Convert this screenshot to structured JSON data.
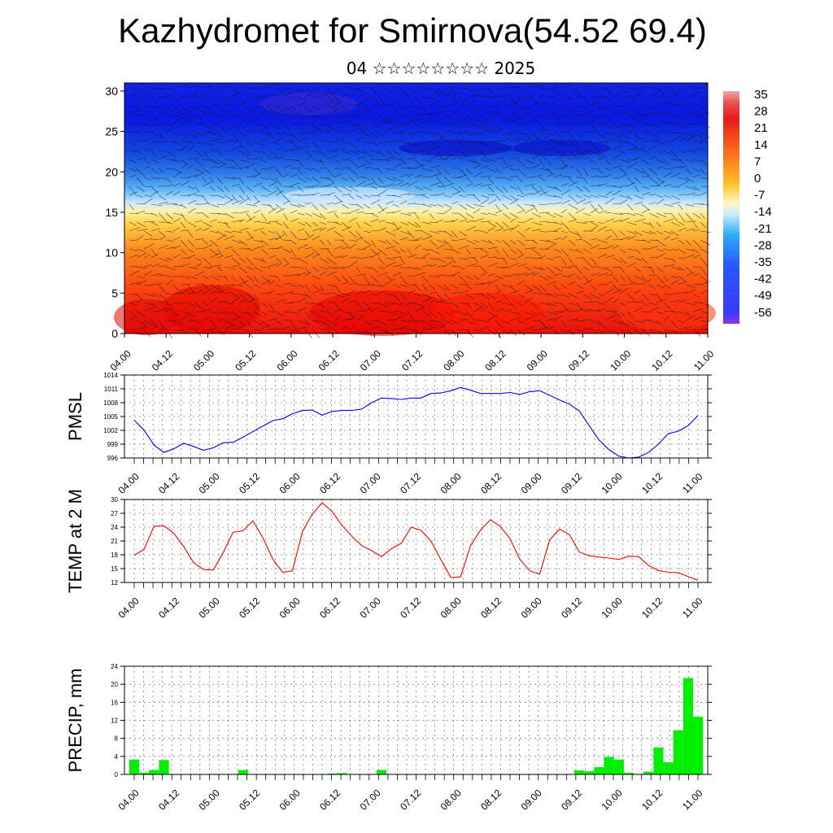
{
  "title": "Kazhydromet for Smirnova(54.52 69.4)",
  "subtitle": "04 ☆☆☆☆☆☆☆☆ 2025",
  "chart_data": [
    {
      "type": "heatmap",
      "name": "vertical-section",
      "x_ticks": [
        "04.00",
        "04.12",
        "05.00",
        "05.12",
        "06.00",
        "06.12",
        "07.00",
        "07.12",
        "08.00",
        "08.12",
        "09.00",
        "09.12",
        "10.00",
        "10.12",
        "11.00"
      ],
      "y_ticks": [
        0,
        5,
        10,
        15,
        20,
        25,
        30
      ],
      "ylim": [
        0,
        31
      ],
      "colorbar_ticks": [
        35,
        28,
        21,
        14,
        7,
        0,
        -7,
        -14,
        -21,
        -28,
        -35,
        -42,
        -49,
        -56
      ],
      "note_overlay": "wind barbs"
    },
    {
      "type": "line",
      "ylabel": "PMSL",
      "ylim": [
        996,
        1014
      ],
      "y_ticks": [
        1014,
        1011,
        1008,
        1005,
        1002,
        999,
        996
      ],
      "x_ticks": [
        "04.00",
        "04.12",
        "05.00",
        "05.12",
        "06.00",
        "06.12",
        "07.00",
        "07.12",
        "08.00",
        "08.12",
        "09.00",
        "09.12",
        "10.00",
        "10.12",
        "11.00"
      ],
      "color": "#0000ff",
      "values": [
        1004.2,
        1002,
        998.8,
        997.2,
        998,
        999.2,
        998.5,
        997.7,
        998.2,
        999.3,
        999.4,
        1000.5,
        1001.7,
        1002.9,
        1004.1,
        1004.5,
        1005.6,
        1006.3,
        1006.4,
        1005.3,
        1006.1,
        1006.3,
        1006.3,
        1006.6,
        1008,
        1009,
        1008.9,
        1008.7,
        1009,
        1009,
        1010,
        1010.1,
        1010.6,
        1011.3,
        1010.7,
        1010,
        1010,
        1010,
        1010.2,
        1009.8,
        1010.4,
        1010.6,
        1009.6,
        1008.6,
        1007.7,
        1006.2,
        1003,
        999.9,
        997.8,
        996.4,
        996,
        996.2,
        997.2,
        999,
        1001.3,
        1001.8,
        1003,
        1005.2
      ]
    },
    {
      "type": "line",
      "ylabel": "TEMP at 2 M",
      "ylim": [
        12,
        30
      ],
      "y_ticks": [
        30,
        27,
        24,
        21,
        18,
        15,
        12
      ],
      "x_ticks": [
        "04.00",
        "04.12",
        "05.00",
        "05.12",
        "06.00",
        "06.12",
        "07.00",
        "07.12",
        "08.00",
        "08.12",
        "09.00",
        "09.12",
        "10.00",
        "10.12",
        "11.00"
      ],
      "color": "#ff0000",
      "values": [
        17.9,
        19.2,
        24.2,
        24.3,
        22.7,
        19.8,
        16.3,
        14.8,
        14.7,
        18.5,
        22.9,
        23.2,
        25.4,
        21.7,
        17.1,
        14.2,
        14.5,
        23,
        26.8,
        29.3,
        27.4,
        24.4,
        22,
        20,
        18.9,
        17.6,
        19.3,
        20.5,
        24,
        23.3,
        21,
        17,
        13.1,
        13.2,
        20,
        23.3,
        25.6,
        24.2,
        21.5,
        17,
        14.5,
        13.8,
        21.2,
        23.6,
        22.4,
        18.6,
        17.8,
        17.5,
        17.3,
        17,
        17.7,
        17.6,
        15.7,
        14.6,
        14.2,
        14.1,
        13.3,
        12.5
      ]
    },
    {
      "type": "bar",
      "ylabel": "PRECIP, mm",
      "ylim": [
        0,
        24
      ],
      "y_ticks": [
        24,
        20,
        16,
        12,
        8,
        4,
        0
      ],
      "x_ticks": [
        "04.00",
        "04.12",
        "05.00",
        "05.12",
        "06.00",
        "06.12",
        "07.00",
        "07.12",
        "08.00",
        "08.12",
        "09.00",
        "09.12",
        "10.00",
        "10.12",
        "11.00"
      ],
      "color": "#00ee00",
      "values": [
        3.3,
        0.4,
        1,
        3.2,
        0,
        0,
        0,
        0,
        0.1,
        0.1,
        0,
        1,
        0,
        0,
        0,
        0,
        0,
        0,
        0,
        0,
        0.2,
        0.3,
        0,
        0,
        0.1,
        1,
        0,
        0,
        0,
        0,
        0,
        0,
        0,
        0,
        0,
        0,
        0,
        0,
        0,
        0,
        0,
        0,
        0,
        0,
        0,
        0.9,
        0.7,
        1.6,
        3.9,
        3.3,
        0.4,
        0.1,
        0.6,
        6,
        2.7,
        9.8,
        21.4,
        12.8
      ]
    }
  ]
}
